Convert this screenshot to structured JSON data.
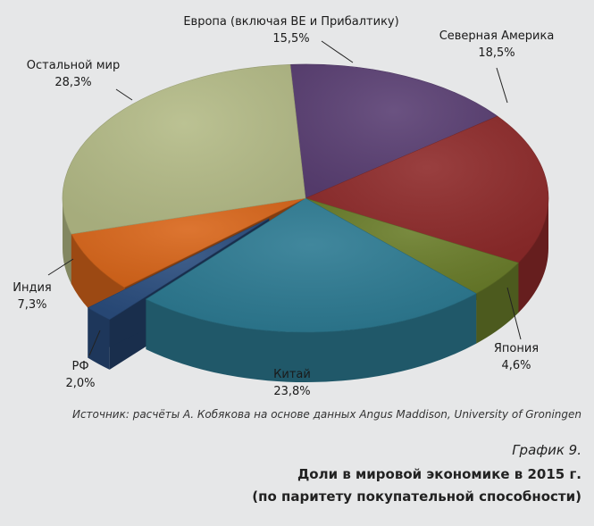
{
  "chart_data": {
    "type": "pie",
    "style": "3d-exploded",
    "slices": [
      {
        "label": "Европа (включая ВЕ и Прибалтику)",
        "display": "15,5%",
        "value": 15.5,
        "color": "#5a3f73"
      },
      {
        "label": "Северная Америка",
        "display": "18,5%",
        "value": 18.5,
        "color": "#8e2a2a"
      },
      {
        "label": "Япония",
        "display": "4,6%",
        "value": 4.6,
        "color": "#6a7d2a"
      },
      {
        "label": "Китай",
        "display": "23,8%",
        "value": 23.8,
        "color": "#2c7a92"
      },
      {
        "label": "РФ",
        "display": "2,0%",
        "value": 2.0,
        "color": "#2a4d7e",
        "exploded": true
      },
      {
        "label": "Индия",
        "display": "7,3%",
        "value": 7.3,
        "color": "#d9661a"
      },
      {
        "label": "Остальной мир",
        "display": "28,3%",
        "value": 28.3,
        "color": "#b4bb87"
      }
    ]
  },
  "source": "Источник: расчёты А. Кобякова на основе данных Angus Maddison, University of Groningen",
  "caption": {
    "number": "График 9.",
    "title_line1": "Доли в мировой экономике в 2015 г.",
    "title_line2": "(по паритету покупательной способности)"
  }
}
